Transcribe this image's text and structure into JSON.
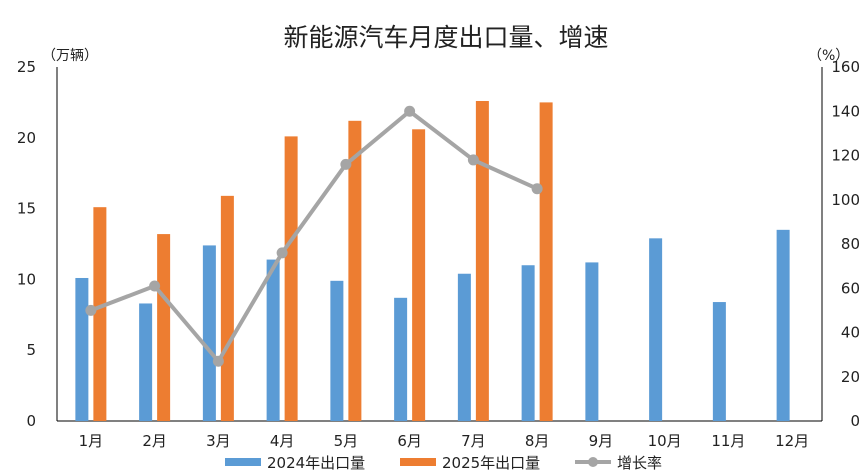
{
  "chart_data": {
    "type": "bar",
    "title": "新能源汽车月度出口量、增速",
    "y_left_unit": "（万辆）",
    "y_right_unit": "（%）",
    "categories": [
      "1月",
      "2月",
      "3月",
      "4月",
      "5月",
      "6月",
      "7月",
      "8月",
      "9月",
      "10月",
      "11月",
      "12月"
    ],
    "ylim_left": [
      0,
      25
    ],
    "yticks_left": [
      "0",
      "5",
      "10",
      "15",
      "20",
      "25"
    ],
    "ylim_right": [
      0,
      160
    ],
    "yticks_right": [
      "0",
      "20",
      "40",
      "60",
      "80",
      "100",
      "120",
      "140",
      "160"
    ],
    "series": [
      {
        "name": "2024年出口量",
        "kind": "bar",
        "axis": "left",
        "color": "#5b9bd5",
        "values": [
          10.1,
          8.3,
          12.4,
          11.4,
          9.9,
          8.7,
          10.4,
          11.0,
          11.2,
          12.9,
          8.4,
          13.5
        ]
      },
      {
        "name": "2025年出口量",
        "kind": "bar",
        "axis": "left",
        "color": "#ed7d31",
        "values": [
          15.1,
          13.2,
          15.9,
          20.1,
          21.2,
          20.6,
          22.6,
          22.5,
          null,
          null,
          null,
          null
        ]
      },
      {
        "name": "增长率",
        "kind": "line",
        "axis": "right",
        "color": "#a5a5a5",
        "values": [
          50,
          61,
          27,
          76,
          116,
          140,
          118,
          105,
          null,
          null,
          null,
          null
        ]
      }
    ],
    "grid": false,
    "legend_position": "bottom"
  }
}
